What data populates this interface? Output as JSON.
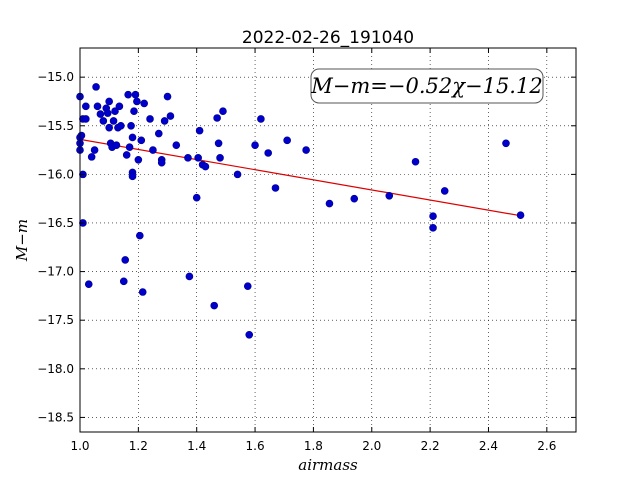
{
  "chart_data": {
    "type": "scatter",
    "title": "2022-02-26_191040",
    "xlabel": "airmass",
    "ylabel": "M−m",
    "xlim": [
      1.0,
      2.7
    ],
    "ylim": [
      -18.65,
      -14.7
    ],
    "x_ticks": [
      1.0,
      1.2,
      1.4,
      1.6,
      1.8,
      2.0,
      2.2,
      2.4,
      2.6
    ],
    "x_tick_labels": [
      "1.0",
      "1.2",
      "1.4",
      "1.6",
      "1.8",
      "2.0",
      "2.2",
      "2.4",
      "2.6"
    ],
    "y_ticks": [
      -15.0,
      -15.5,
      -16.0,
      -16.5,
      -17.0,
      -17.5,
      -18.0,
      -18.5
    ],
    "y_tick_labels": [
      "−15.0",
      "−15.5",
      "−16.0",
      "−16.5",
      "−17.0",
      "−17.5",
      "−18.0",
      "−18.5"
    ],
    "grid": true,
    "annotation": "M−m=−0.52χ−15.12",
    "fit": {
      "slope": -0.52,
      "intercept": -15.12,
      "x_range": [
        1.0,
        2.51
      ],
      "color": "#dd0000"
    },
    "marker_color": "#0000cc",
    "points": [
      {
        "x": 1.0,
        "y": -15.2
      },
      {
        "x": 1.0,
        "y": -15.62
      },
      {
        "x": 1.0,
        "y": -15.68
      },
      {
        "x": 1.0,
        "y": -15.75
      },
      {
        "x": 1.005,
        "y": -15.6
      },
      {
        "x": 1.01,
        "y": -15.43
      },
      {
        "x": 1.01,
        "y": -16.0
      },
      {
        "x": 1.01,
        "y": -16.5
      },
      {
        "x": 1.02,
        "y": -15.43
      },
      {
        "x": 1.02,
        "y": -15.3
      },
      {
        "x": 1.03,
        "y": -17.13
      },
      {
        "x": 1.04,
        "y": -15.82
      },
      {
        "x": 1.05,
        "y": -15.75
      },
      {
        "x": 1.055,
        "y": -15.1
      },
      {
        "x": 1.06,
        "y": -15.3
      },
      {
        "x": 1.07,
        "y": -15.38
      },
      {
        "x": 1.08,
        "y": -15.45
      },
      {
        "x": 1.09,
        "y": -15.32
      },
      {
        "x": 1.095,
        "y": -15.37
      },
      {
        "x": 1.1,
        "y": -15.25
      },
      {
        "x": 1.1,
        "y": -15.52
      },
      {
        "x": 1.105,
        "y": -15.68
      },
      {
        "x": 1.11,
        "y": -15.72
      },
      {
        "x": 1.115,
        "y": -15.45
      },
      {
        "x": 1.12,
        "y": -15.35
      },
      {
        "x": 1.125,
        "y": -15.7
      },
      {
        "x": 1.13,
        "y": -15.52
      },
      {
        "x": 1.135,
        "y": -15.3
      },
      {
        "x": 1.14,
        "y": -15.5
      },
      {
        "x": 1.15,
        "y": -17.1
      },
      {
        "x": 1.155,
        "y": -16.88
      },
      {
        "x": 1.16,
        "y": -15.8
      },
      {
        "x": 1.165,
        "y": -15.18
      },
      {
        "x": 1.17,
        "y": -15.72
      },
      {
        "x": 1.175,
        "y": -15.5
      },
      {
        "x": 1.18,
        "y": -15.62
      },
      {
        "x": 1.18,
        "y": -15.98
      },
      {
        "x": 1.18,
        "y": -16.02
      },
      {
        "x": 1.185,
        "y": -15.35
      },
      {
        "x": 1.19,
        "y": -15.18
      },
      {
        "x": 1.195,
        "y": -15.25
      },
      {
        "x": 1.2,
        "y": -15.85
      },
      {
        "x": 1.205,
        "y": -16.63
      },
      {
        "x": 1.21,
        "y": -15.65
      },
      {
        "x": 1.215,
        "y": -17.21
      },
      {
        "x": 1.22,
        "y": -15.27
      },
      {
        "x": 1.24,
        "y": -15.43
      },
      {
        "x": 1.25,
        "y": -15.75
      },
      {
        "x": 1.27,
        "y": -15.58
      },
      {
        "x": 1.28,
        "y": -15.85
      },
      {
        "x": 1.28,
        "y": -15.88
      },
      {
        "x": 1.29,
        "y": -15.45
      },
      {
        "x": 1.3,
        "y": -15.2
      },
      {
        "x": 1.31,
        "y": -15.4
      },
      {
        "x": 1.33,
        "y": -15.7
      },
      {
        "x": 1.37,
        "y": -15.83
      },
      {
        "x": 1.375,
        "y": -17.05
      },
      {
        "x": 1.4,
        "y": -16.24
      },
      {
        "x": 1.405,
        "y": -15.83
      },
      {
        "x": 1.41,
        "y": -15.55
      },
      {
        "x": 1.42,
        "y": -15.9
      },
      {
        "x": 1.43,
        "y": -15.92
      },
      {
        "x": 1.46,
        "y": -17.35
      },
      {
        "x": 1.47,
        "y": -15.42
      },
      {
        "x": 1.475,
        "y": -15.68
      },
      {
        "x": 1.48,
        "y": -15.83
      },
      {
        "x": 1.49,
        "y": -15.35
      },
      {
        "x": 1.54,
        "y": -16.0
      },
      {
        "x": 1.575,
        "y": -17.15
      },
      {
        "x": 1.58,
        "y": -17.65
      },
      {
        "x": 1.6,
        "y": -15.7
      },
      {
        "x": 1.62,
        "y": -15.43
      },
      {
        "x": 1.645,
        "y": -15.78
      },
      {
        "x": 1.67,
        "y": -16.14
      },
      {
        "x": 1.71,
        "y": -15.65
      },
      {
        "x": 1.775,
        "y": -15.75
      },
      {
        "x": 1.855,
        "y": -16.3
      },
      {
        "x": 1.94,
        "y": -16.25
      },
      {
        "x": 2.06,
        "y": -16.22
      },
      {
        "x": 2.15,
        "y": -15.87
      },
      {
        "x": 2.21,
        "y": -16.43
      },
      {
        "x": 2.21,
        "y": -16.55
      },
      {
        "x": 2.25,
        "y": -16.17
      },
      {
        "x": 2.46,
        "y": -15.68
      },
      {
        "x": 2.51,
        "y": -16.42
      }
    ]
  }
}
